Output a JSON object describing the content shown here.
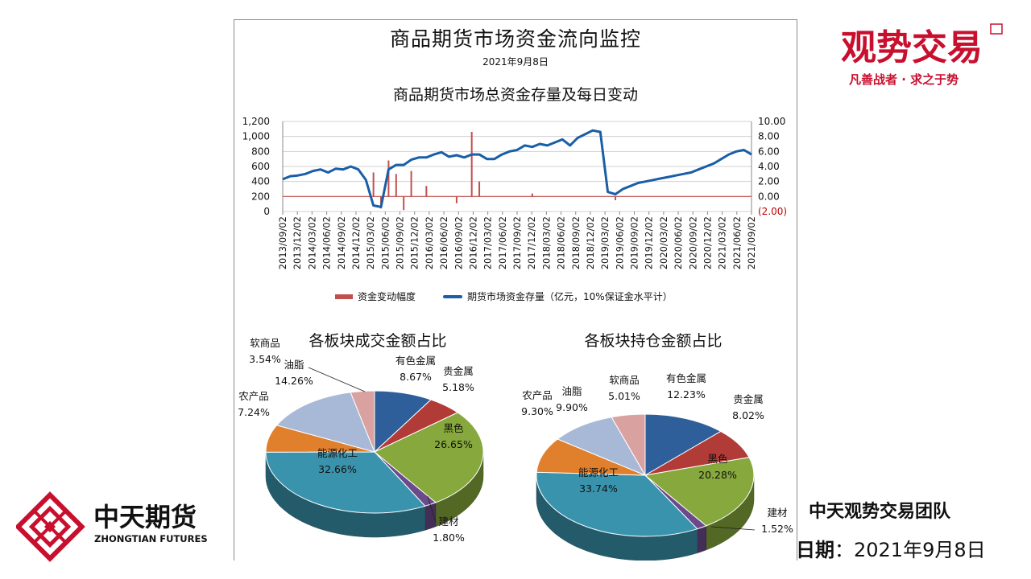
{
  "report": {
    "title": "商品期货市场资金流向监控",
    "date": "2021年9月8日",
    "line_chart_title": "商品期货市场总资金存量及每日变动"
  },
  "logos": {
    "top_right_name": "观势交易",
    "top_right_slogan": "凡善战者 · 求之于势",
    "company_cn": "中天期货",
    "company_en": "ZHONGTIAN FUTURES",
    "brand_red": "#c8102e"
  },
  "footer": {
    "team": "中天观势交易团队",
    "date_label": "日期",
    "date_sep": "：",
    "date_value": "2021年9月8日"
  },
  "chart_data": [
    {
      "type": "line",
      "title": "商品期货市场总资金存量及每日变动",
      "x_ticks": [
        "2013/09/02",
        "2013/12/02",
        "2014/03/02",
        "2014/06/02",
        "2014/09/02",
        "2014/12/02",
        "2015/03/02",
        "2015/06/02",
        "2015/09/02",
        "2015/12/02",
        "2016/03/02",
        "2016/06/02",
        "2016/09/02",
        "2016/12/02",
        "2017/03/02",
        "2017/06/02",
        "2017/09/02",
        "2017/12/02",
        "2018/03/02",
        "2018/06/02",
        "2018/09/02",
        "2018/12/02",
        "2019/03/02",
        "2019/06/02",
        "2019/09/02",
        "2019/12/02",
        "2020/03/02",
        "2020/06/02",
        "2020/09/02",
        "2020/12/02",
        "2021/03/02",
        "2021/06/02",
        "2021/09/02"
      ],
      "y_left": {
        "ticks": [
          "1,200",
          "1,000",
          "800",
          "600",
          "400",
          "200",
          "0"
        ],
        "lim": [
          0,
          1200
        ]
      },
      "y_right": {
        "ticks": [
          "10.00",
          "8.00",
          "6.00",
          "4.00",
          "2.00",
          "0.00",
          "(2.00)"
        ],
        "lim": [
          -2,
          10
        ],
        "negative_color": "#c00000"
      },
      "series": [
        {
          "name": "期货市场资金存量（亿元，10%保证金水平计）",
          "color": "#1a5ea8",
          "values": [
            430,
            470,
            480,
            500,
            540,
            560,
            520,
            570,
            560,
            600,
            560,
            420,
            80,
            60,
            560,
            620,
            620,
            690,
            720,
            720,
            760,
            790,
            730,
            750,
            720,
            760,
            760,
            700,
            700,
            760,
            800,
            820,
            880,
            860,
            900,
            880,
            920,
            960,
            880,
            980,
            1030,
            1080,
            1060,
            260,
            230,
            300,
            340,
            380,
            400,
            420,
            440,
            460,
            480,
            500,
            520,
            560,
            600,
            640,
            700,
            760,
            800,
            820,
            760
          ]
        },
        {
          "name": "资金变动幅度",
          "color": "#c0504d",
          "spikes": [
            {
              "i": 12,
              "v": 3.2
            },
            {
              "i": 13,
              "v": -1.6
            },
            {
              "i": 14,
              "v": 4.8
            },
            {
              "i": 15,
              "v": 3.0
            },
            {
              "i": 16,
              "v": -1.8
            },
            {
              "i": 17,
              "v": 3.4
            },
            {
              "i": 19,
              "v": 1.4
            },
            {
              "i": 23,
              "v": -0.9
            },
            {
              "i": 25,
              "v": 8.6
            },
            {
              "i": 26,
              "v": 2.0
            },
            {
              "i": 33,
              "v": 0.4
            },
            {
              "i": 44,
              "v": -0.5
            }
          ]
        }
      ],
      "legend": [
        "资金变动幅度",
        "期货市场资金存量（亿元，10%保证金水平计）"
      ],
      "legend_position": "bottom"
    },
    {
      "type": "pie",
      "title": "各板块成交金额占比",
      "slices": [
        {
          "label": "有色金属",
          "value": 8.67,
          "pct": "8.67%",
          "color": "#2e5f9b"
        },
        {
          "label": "贵金属",
          "value": 5.18,
          "pct": "5.18%",
          "color": "#b13b37"
        },
        {
          "label": "黑色",
          "value": 26.65,
          "pct": "26.65%",
          "color": "#86a83c"
        },
        {
          "label": "建材",
          "value": 1.8,
          "pct": "1.80%",
          "color": "#6b4a8c"
        },
        {
          "label": "能源化工",
          "value": 32.66,
          "pct": "32.66%",
          "color": "#3a93ad"
        },
        {
          "label": "农产品",
          "value": 7.24,
          "pct": "7.24%",
          "color": "#e07f2c"
        },
        {
          "label": "油脂",
          "value": 14.26,
          "pct": "14.26%",
          "color": "#a8b9d8"
        },
        {
          "label": "软商品",
          "value": 3.54,
          "pct": "3.54%",
          "color": "#d9a2a0"
        }
      ]
    },
    {
      "type": "pie",
      "title": "各板块持仓金额占比",
      "slices": [
        {
          "label": "有色金属",
          "value": 12.23,
          "pct": "12.23%",
          "color": "#2e5f9b"
        },
        {
          "label": "贵金属",
          "value": 8.02,
          "pct": "8.02%",
          "color": "#b13b37"
        },
        {
          "label": "黑色",
          "value": 20.28,
          "pct": "20.28%",
          "color": "#86a83c"
        },
        {
          "label": "建材",
          "value": 1.52,
          "pct": "1.52%",
          "color": "#6b4a8c"
        },
        {
          "label": "能源化工",
          "value": 33.74,
          "pct": "33.74%",
          "color": "#3a93ad"
        },
        {
          "label": "农产品",
          "value": 9.3,
          "pct": "9.30%",
          "color": "#e07f2c"
        },
        {
          "label": "油脂",
          "value": 9.9,
          "pct": "9.90%",
          "color": "#a8b9d8"
        },
        {
          "label": "软商品",
          "value": 5.01,
          "pct": "5.01%",
          "color": "#d9a2a0"
        }
      ]
    }
  ]
}
